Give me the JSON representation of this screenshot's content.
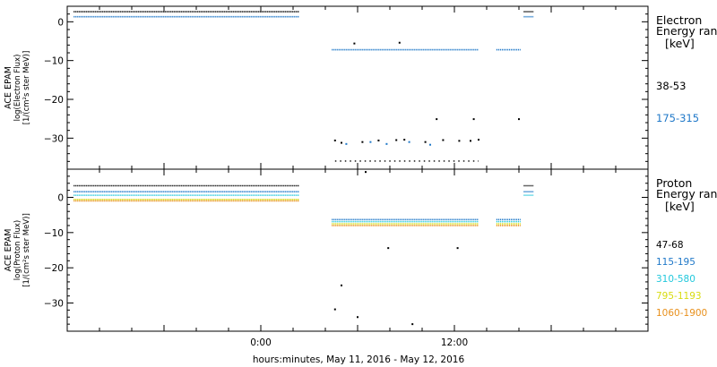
{
  "figure": {
    "xlabel": "hours:minutes, May 11, 2016 - May 12, 2016",
    "x_tick_labels": [
      "0:00",
      "12:00"
    ]
  },
  "chart_data": [
    {
      "type": "scatter",
      "panel": "electron",
      "ylabel_lines": [
        "ACE EPAM",
        "log(Electron Flux)",
        "[1/(cm²s ster MeV)]"
      ],
      "legend_title_lines": [
        "Electron",
        "Energy ran"
      ],
      "legend_unit": "[keV]",
      "ylim": [
        -38,
        4
      ],
      "yticks": [
        0,
        -10,
        -20,
        -30
      ],
      "xlim_hours": [
        -12,
        24
      ],
      "series": [
        {
          "name": "38-53",
          "color": "#000000",
          "segments": [
            {
              "x_start": -11.6,
              "x_end": 2.4,
              "y": 2.6
            },
            {
              "x_start": 16.3,
              "x_end": 16.9,
              "y": 2.6
            }
          ],
          "scatter": [
            {
              "x": 4.6,
              "y": -30.6
            },
            {
              "x": 5.0,
              "y": -31.2
            },
            {
              "x": 6.3,
              "y": -31.0
            },
            {
              "x": 7.3,
              "y": -30.6
            },
            {
              "x": 8.4,
              "y": -30.5
            },
            {
              "x": 8.9,
              "y": -30.4
            },
            {
              "x": 10.2,
              "y": -31.0
            },
            {
              "x": 11.3,
              "y": -30.5
            },
            {
              "x": 12.3,
              "y": -30.7
            },
            {
              "x": 13.0,
              "y": -30.7
            },
            {
              "x": 13.5,
              "y": -30.4
            },
            {
              "x": 10.9,
              "y": -25.1
            },
            {
              "x": 13.2,
              "y": -25.1
            },
            {
              "x": 16.0,
              "y": -25.1
            },
            {
              "x": 5.8,
              "y": -5.6
            },
            {
              "x": 8.6,
              "y": -5.4
            }
          ],
          "floor_band": {
            "x_start": 4.6,
            "x_end": 13.5,
            "y": -35.9
          }
        },
        {
          "name": "175-315",
          "color": "#1f78c8",
          "segments": [
            {
              "x_start": -11.6,
              "x_end": 2.4,
              "y": 1.3
            },
            {
              "x_start": 4.4,
              "x_end": 13.5,
              "y": -7.2
            },
            {
              "x_start": 14.6,
              "x_end": 16.1,
              "y": -7.2
            },
            {
              "x_start": 16.3,
              "x_end": 16.9,
              "y": 1.3
            }
          ],
          "scatter": [
            {
              "x": 5.3,
              "y": -31.5
            },
            {
              "x": 6.8,
              "y": -31.0
            },
            {
              "x": 7.8,
              "y": -31.5
            },
            {
              "x": 9.2,
              "y": -31.0
            },
            {
              "x": 10.5,
              "y": -31.7
            }
          ]
        }
      ]
    },
    {
      "type": "scatter",
      "panel": "proton",
      "ylabel_lines": [
        "ACE EPAM",
        "log(Proton Flux)",
        "[1/(cm²s ster MeV)]"
      ],
      "legend_title_lines": [
        "Proton",
        "Energy ran"
      ],
      "legend_unit": "[keV]",
      "ylim": [
        -38,
        8
      ],
      "yticks": [
        0,
        -10,
        -20,
        -30
      ],
      "xlim_hours": [
        -12,
        24
      ],
      "series": [
        {
          "name": "47-68",
          "color": "#000000",
          "segments": [
            {
              "x_start": -11.6,
              "x_end": 2.4,
              "y": 3.3
            },
            {
              "x_start": 16.3,
              "x_end": 16.9,
              "y": 3.3
            }
          ],
          "scatter": [
            {
              "x": 6.5,
              "y": 7.2
            },
            {
              "x": 7.9,
              "y": -14.4
            },
            {
              "x": 12.2,
              "y": -14.4
            },
            {
              "x": 5.0,
              "y": -25.0
            },
            {
              "x": 4.6,
              "y": -31.8
            },
            {
              "x": 6.0,
              "y": -34.0
            },
            {
              "x": 9.4,
              "y": -36.0
            }
          ]
        },
        {
          "name": "115-195",
          "color": "#1f78c8",
          "segments": [
            {
              "x_start": -11.6,
              "x_end": 2.4,
              "y": 1.6
            },
            {
              "x_start": 4.4,
              "x_end": 13.5,
              "y": -6.3
            },
            {
              "x_start": 14.6,
              "x_end": 16.1,
              "y": -6.3
            },
            {
              "x_start": 16.3,
              "x_end": 16.9,
              "y": 1.6
            }
          ]
        },
        {
          "name": "310-580",
          "color": "#22c8dc",
          "segments": [
            {
              "x_start": -11.6,
              "x_end": 2.4,
              "y": 0.6
            },
            {
              "x_start": 4.4,
              "x_end": 13.5,
              "y": -6.9
            },
            {
              "x_start": 14.6,
              "x_end": 16.1,
              "y": -6.9
            },
            {
              "x_start": 16.3,
              "x_end": 16.9,
              "y": 0.6
            }
          ]
        },
        {
          "name": "795-1193",
          "color": "#d8dc10",
          "segments": [
            {
              "x_start": -11.6,
              "x_end": 2.4,
              "y": -0.6
            },
            {
              "x_start": 4.4,
              "x_end": 13.5,
              "y": -7.5
            },
            {
              "x_start": 14.6,
              "x_end": 16.1,
              "y": -7.5
            }
          ]
        },
        {
          "name": "1060-1900",
          "color": "#e8901c",
          "segments": [
            {
              "x_start": -11.6,
              "x_end": 2.4,
              "y": -1.0
            },
            {
              "x_start": 4.4,
              "x_end": 13.5,
              "y": -8.0
            },
            {
              "x_start": 14.6,
              "x_end": 16.1,
              "y": -8.0
            }
          ]
        }
      ]
    }
  ]
}
